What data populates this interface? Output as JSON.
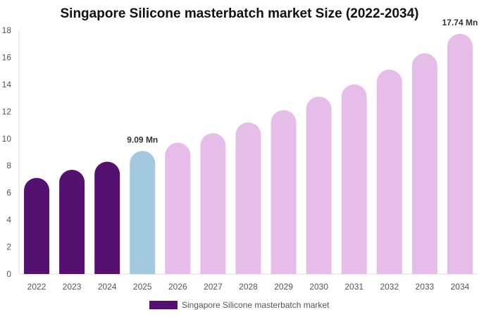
{
  "chart_data": {
    "type": "bar",
    "title": "Singapore Silicone masterbatch market Size (2022-2034)",
    "categories": [
      "2022",
      "2023",
      "2024",
      "2025",
      "2026",
      "2027",
      "2028",
      "2029",
      "2030",
      "2031",
      "2032",
      "2033",
      "2034"
    ],
    "series": [
      {
        "name": "Singapore Silicone masterbatch market",
        "values": [
          7.1,
          7.7,
          8.3,
          9.09,
          9.7,
          10.4,
          11.2,
          12.1,
          13.1,
          14.0,
          15.1,
          16.3,
          17.74
        ]
      }
    ],
    "data_labels": [
      {
        "category": "2025",
        "text": "9.09 Mn"
      },
      {
        "category": "2034",
        "text": "17.74 Mn"
      }
    ],
    "y_ticks": [
      0,
      2,
      4,
      6,
      8,
      10,
      12,
      14,
      16,
      18
    ],
    "ylim": [
      0,
      18
    ],
    "grid": false,
    "legend_position": "bottom",
    "colors": {
      "historical": "#541170",
      "current": "#a3c9de",
      "forecast": "#e6bce8"
    },
    "bar_color_groups": [
      "historical",
      "historical",
      "historical",
      "current",
      "forecast",
      "forecast",
      "forecast",
      "forecast",
      "forecast",
      "forecast",
      "forecast",
      "forecast",
      "forecast"
    ]
  }
}
